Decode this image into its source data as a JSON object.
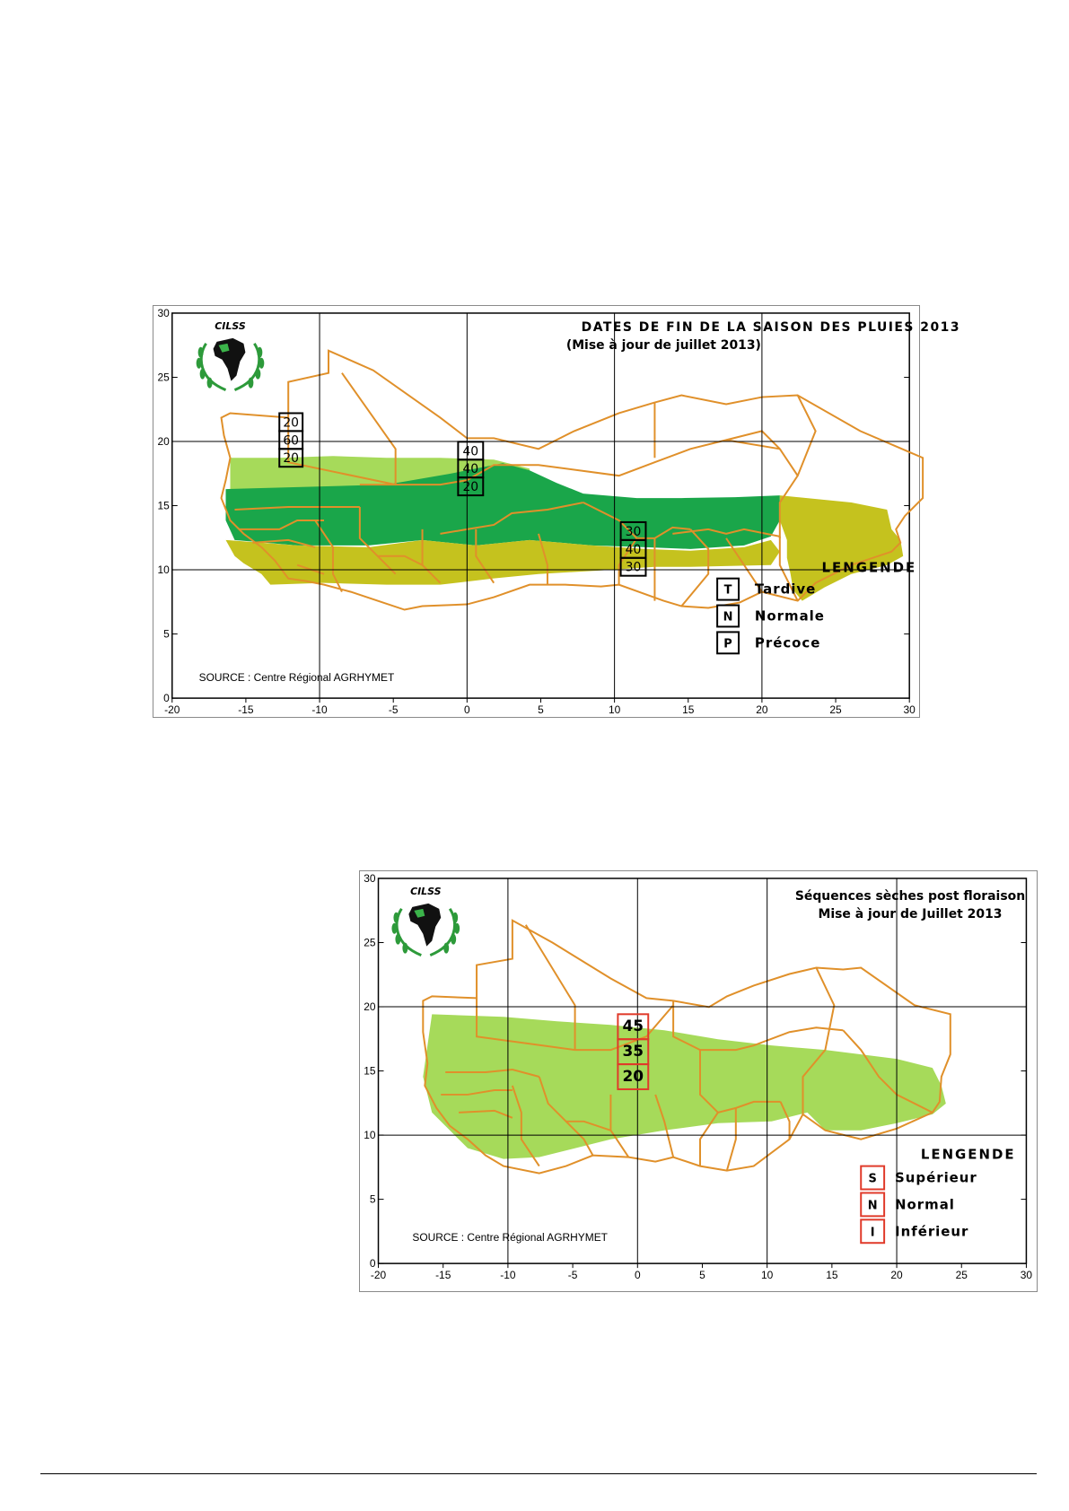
{
  "maps": [
    {
      "title_line1": "DATES DE FIN DE LA SAISON DES PLUIES 2013",
      "title_line2": "(Mise à jour de juillet 2013)",
      "logo_text": "CILSS",
      "source": "SOURCE : Centre Régional AGRHYMET",
      "legend_title": "LENGENDE",
      "legend": [
        {
          "key": "T",
          "label": "Tardive"
        },
        {
          "key": "N",
          "label": "Normale"
        },
        {
          "key": "P",
          "label": "Précoce"
        }
      ],
      "x_ticks": [
        "-20",
        "-15",
        "-10",
        "-5",
        "0",
        "5",
        "10",
        "15",
        "20",
        "25",
        "30"
      ],
      "y_ticks": [
        "0",
        "5",
        "10",
        "15",
        "20",
        "25",
        "30"
      ],
      "box_color": "#000000",
      "prob_boxes": [
        {
          "values": [
            "20",
            "60",
            "20"
          ]
        },
        {
          "values": [
            "40",
            "40",
            "20"
          ]
        },
        {
          "values": [
            "30",
            "40",
            "30"
          ]
        }
      ],
      "colors": {
        "light": "#a6da5a",
        "dark": "#1aa64a",
        "olive": "#c5c21e",
        "border": "#e0902a"
      }
    },
    {
      "title_line1": "Séquences sèches post floraison",
      "title_line2": "Mise à jour de Juillet 2013",
      "logo_text": "CILSS",
      "source": "SOURCE : Centre Régional AGRHYMET",
      "legend_title": "LENGENDE",
      "legend": [
        {
          "key": "S",
          "label": "Supérieur"
        },
        {
          "key": "N",
          "label": "Normal"
        },
        {
          "key": "I",
          "label": "Inférieur"
        }
      ],
      "x_ticks": [
        "-20",
        "-15",
        "-10",
        "-5",
        "0",
        "5",
        "10",
        "15",
        "20",
        "25",
        "30"
      ],
      "y_ticks": [
        "0",
        "5",
        "10",
        "15",
        "20",
        "25",
        "30"
      ],
      "box_color": "#e03a2a",
      "prob_boxes": [
        {
          "values": [
            "45",
            "35",
            "20"
          ]
        }
      ],
      "colors": {
        "light": "#a6da5a",
        "border": "#e0902a"
      }
    }
  ]
}
